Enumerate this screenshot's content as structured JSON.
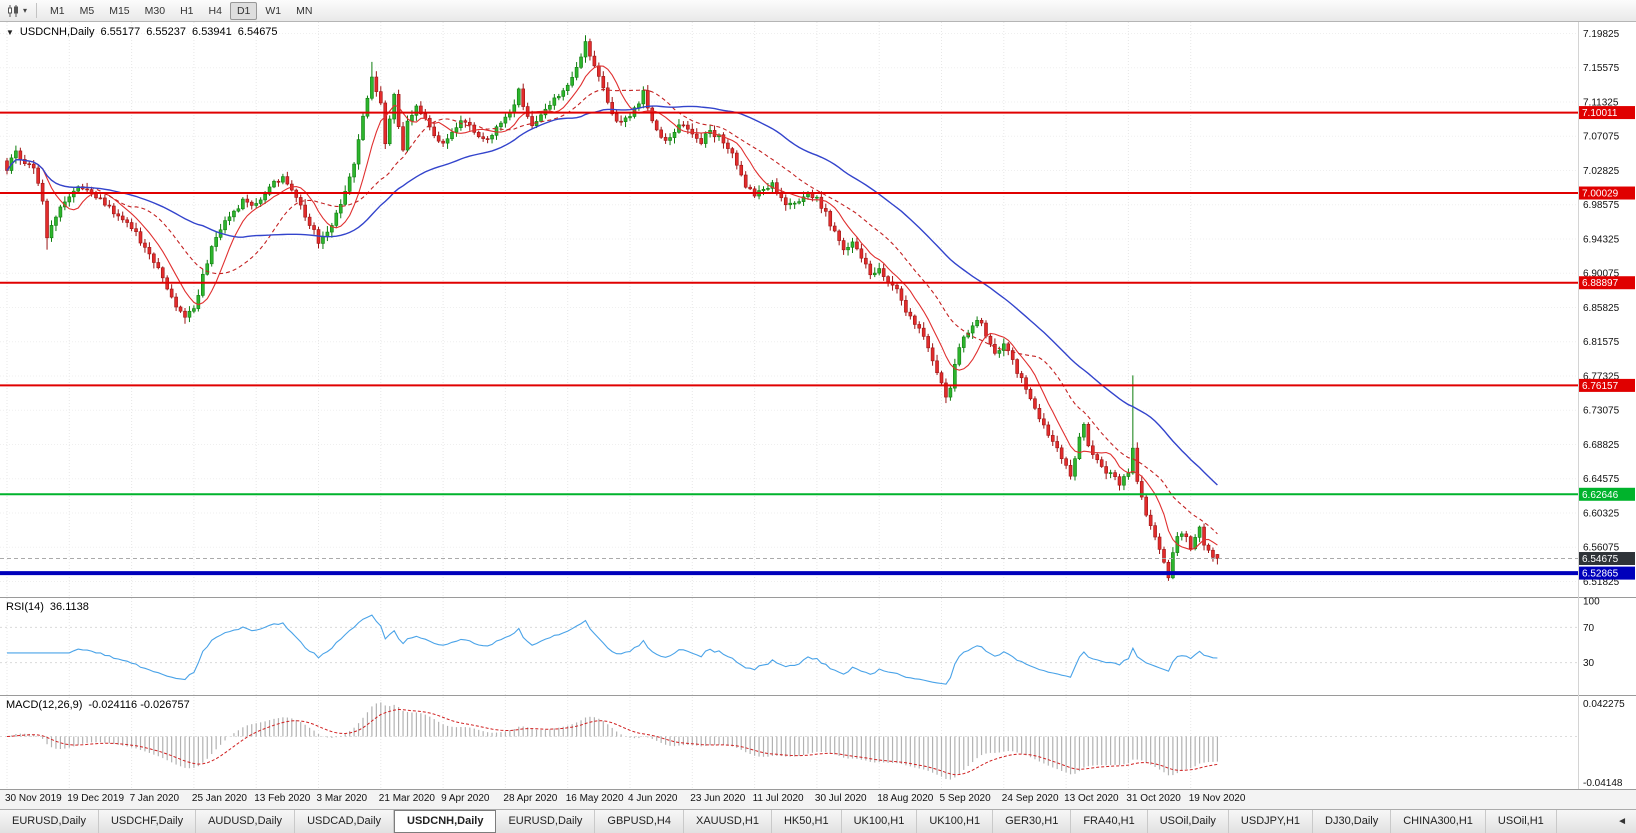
{
  "toolbar": {
    "timeframes": [
      "M1",
      "M5",
      "M15",
      "M30",
      "H1",
      "H4",
      "D1",
      "W1",
      "MN"
    ],
    "active_timeframe": "D1",
    "dropdown_glyph": "▾"
  },
  "header": {
    "collapse_glyph": "▼",
    "symbol_label": "USDCNH,Daily",
    "open": "6.55177",
    "high": "6.55237",
    "low": "6.53941",
    "close": "6.54675"
  },
  "rsi_panel": {
    "label": "RSI(14)",
    "value": "36.1138"
  },
  "macd_panel": {
    "label": "MACD(12,26,9)",
    "values": "-0.024116 -0.026757"
  },
  "tabbar": {
    "active_index": 4,
    "scroll_glyph": "◄",
    "tabs": [
      "EURUSD,Daily",
      "USDCHF,Daily",
      "AUDUSD,Daily",
      "USDCAD,Daily",
      "USDCNH,Daily",
      "EURUSD,Daily",
      "GBPUSD,H4",
      "XAUUSD,H1",
      "HK50,H1",
      "UK100,H1",
      "UK100,H1",
      "GER30,H1",
      "FRA40,H1",
      "USOil,Daily",
      "USDJPY,H1",
      "DJ30,Daily",
      "CHINA300,H1",
      "USOil,H1"
    ]
  },
  "chart_data": {
    "type": "candlestick",
    "symbol": "USDCNH",
    "timeframe": "Daily",
    "candle_count": 273,
    "axis_range": {
      "top": 7.2125,
      "bottom": 6.499
    },
    "price_axis_labels": [
      "7.19825",
      "7.15575",
      "7.11325",
      "7.07075",
      "7.02825",
      "6.98575",
      "6.94325",
      "6.90075",
      "6.85825",
      "6.81575",
      "6.77325",
      "6.73075",
      "6.68825",
      "6.64575",
      "6.60325",
      "6.56075",
      "6.51825"
    ],
    "x_tick_indices": [
      0,
      14,
      28,
      42,
      56,
      70,
      84,
      98,
      112,
      126,
      140,
      154,
      168,
      182,
      196,
      210,
      224,
      238,
      252,
      266
    ],
    "x_tick_labels": [
      "30 Nov 2019",
      "19 Dec 2019",
      "7 Jan 2020",
      "25 Jan 2020",
      "13 Feb 2020",
      "3 Mar 2020",
      "21 Mar 2020",
      "9 Apr 2020",
      "28 Apr 2020",
      "16 May 2020",
      "4 Jun 2020",
      "23 Jun 2020",
      "11 Jul 2020",
      "30 Jul 2020",
      "18 Aug 2020",
      "5 Sep 2020",
      "24 Sep 2020",
      "13 Oct 2020",
      "31 Oct 2020",
      "19 Nov 2020"
    ],
    "close_anchors": [
      [
        0,
        7.03
      ],
      [
        2,
        7.052
      ],
      [
        4,
        7.038
      ],
      [
        6,
        7.034
      ],
      [
        8,
        6.992
      ],
      [
        9,
        6.948
      ],
      [
        11,
        6.972
      ],
      [
        14,
        6.998
      ],
      [
        17,
        7.008
      ],
      [
        20,
        6.996
      ],
      [
        24,
        6.976
      ],
      [
        28,
        6.96
      ],
      [
        31,
        6.932
      ],
      [
        34,
        6.906
      ],
      [
        36,
        6.882
      ],
      [
        38,
        6.86
      ],
      [
        40,
        6.846
      ],
      [
        42,
        6.856
      ],
      [
        44,
        6.898
      ],
      [
        46,
        6.93
      ],
      [
        48,
        6.954
      ],
      [
        50,
        6.974
      ],
      [
        53,
        6.99
      ],
      [
        56,
        6.984
      ],
      [
        58,
        7.0
      ],
      [
        60,
        7.014
      ],
      [
        62,
        7.02
      ],
      [
        64,
        7.004
      ],
      [
        66,
        6.986
      ],
      [
        68,
        6.962
      ],
      [
        70,
        6.94
      ],
      [
        72,
        6.95
      ],
      [
        74,
        6.974
      ],
      [
        76,
        7.0
      ],
      [
        78,
        7.04
      ],
      [
        80,
        7.092
      ],
      [
        82,
        7.142
      ],
      [
        84,
        7.11
      ],
      [
        85,
        7.06
      ],
      [
        86,
        7.096
      ],
      [
        87,
        7.126
      ],
      [
        88,
        7.082
      ],
      [
        89,
        7.052
      ],
      [
        90,
        7.086
      ],
      [
        92,
        7.11
      ],
      [
        94,
        7.094
      ],
      [
        96,
        7.07
      ],
      [
        98,
        7.06
      ],
      [
        100,
        7.076
      ],
      [
        102,
        7.09
      ],
      [
        104,
        7.084
      ],
      [
        106,
        7.07
      ],
      [
        108,
        7.064
      ],
      [
        110,
        7.08
      ],
      [
        112,
        7.094
      ],
      [
        114,
        7.11
      ],
      [
        115,
        7.128
      ],
      [
        116,
        7.104
      ],
      [
        118,
        7.086
      ],
      [
        120,
        7.096
      ],
      [
        122,
        7.11
      ],
      [
        124,
        7.124
      ],
      [
        126,
        7.136
      ],
      [
        128,
        7.156
      ],
      [
        130,
        7.186
      ],
      [
        132,
        7.158
      ],
      [
        134,
        7.128
      ],
      [
        136,
        7.1
      ],
      [
        138,
        7.086
      ],
      [
        140,
        7.096
      ],
      [
        142,
        7.112
      ],
      [
        143,
        7.124
      ],
      [
        144,
        7.104
      ],
      [
        146,
        7.08
      ],
      [
        148,
        7.064
      ],
      [
        150,
        7.076
      ],
      [
        152,
        7.086
      ],
      [
        154,
        7.076
      ],
      [
        156,
        7.064
      ],
      [
        158,
        7.076
      ],
      [
        160,
        7.07
      ],
      [
        162,
        7.058
      ],
      [
        164,
        7.038
      ],
      [
        166,
        7.01
      ],
      [
        168,
        6.996
      ],
      [
        170,
        7.004
      ],
      [
        172,
        7.01
      ],
      [
        174,
        6.994
      ],
      [
        176,
        6.984
      ],
      [
        178,
        6.99
      ],
      [
        180,
        7.0
      ],
      [
        182,
        6.994
      ],
      [
        184,
        6.974
      ],
      [
        186,
        6.95
      ],
      [
        188,
        6.93
      ],
      [
        190,
        6.936
      ],
      [
        192,
        6.92
      ],
      [
        194,
        6.9
      ],
      [
        196,
        6.906
      ],
      [
        198,
        6.89
      ],
      [
        200,
        6.88
      ],
      [
        202,
        6.856
      ],
      [
        204,
        6.84
      ],
      [
        206,
        6.82
      ],
      [
        208,
        6.79
      ],
      [
        210,
        6.768
      ],
      [
        211,
        6.746
      ],
      [
        212,
        6.762
      ],
      [
        213,
        6.786
      ],
      [
        214,
        6.81
      ],
      [
        216,
        6.83
      ],
      [
        218,
        6.846
      ],
      [
        220,
        6.826
      ],
      [
        222,
        6.8
      ],
      [
        224,
        6.816
      ],
      [
        226,
        6.79
      ],
      [
        228,
        6.768
      ],
      [
        230,
        6.744
      ],
      [
        232,
        6.72
      ],
      [
        234,
        6.7
      ],
      [
        236,
        6.684
      ],
      [
        238,
        6.664
      ],
      [
        239,
        6.65
      ],
      [
        240,
        6.672
      ],
      [
        241,
        6.696
      ],
      [
        242,
        6.71
      ],
      [
        243,
        6.69
      ],
      [
        244,
        6.676
      ],
      [
        246,
        6.66
      ],
      [
        248,
        6.65
      ],
      [
        250,
        6.64
      ],
      [
        252,
        6.654
      ],
      [
        253,
        6.68
      ],
      [
        254,
        6.64
      ],
      [
        256,
        6.6
      ],
      [
        258,
        6.57
      ],
      [
        260,
        6.546
      ],
      [
        261,
        6.526
      ],
      [
        262,
        6.556
      ],
      [
        263,
        6.576
      ],
      [
        264,
        6.58
      ],
      [
        265,
        6.57
      ],
      [
        266,
        6.56
      ],
      [
        267,
        6.576
      ],
      [
        268,
        6.582
      ],
      [
        269,
        6.566
      ],
      [
        270,
        6.556
      ],
      [
        271,
        6.549
      ],
      [
        272,
        6.547
      ]
    ],
    "wick_overrides": {
      "9": {
        "low": 6.93
      },
      "40": {
        "low": 6.838
      },
      "82": {
        "high": 7.163
      },
      "130": {
        "high": 7.196
      },
      "253": {
        "high": 6.774
      },
      "261": {
        "low": 6.519
      }
    },
    "last_candle": {
      "open": 6.55177,
      "high": 6.55237,
      "low": 6.53941,
      "close": 6.54675
    },
    "colors": {
      "up_fill": "#2db52d",
      "up_stroke": "#0e7d0e",
      "down_fill": "#e22c2c",
      "down_stroke": "#9c1414",
      "grid": "#e7e7e7"
    },
    "moving_averages": [
      {
        "name": "fast-ma",
        "period": 8,
        "color": "#e03030",
        "style": "solid"
      },
      {
        "name": "mid-ma",
        "period": 20,
        "color": "#c42222",
        "style": "dashed"
      },
      {
        "name": "slow-ma",
        "period": 45,
        "color": "#3344cc",
        "style": "solid"
      }
    ],
    "hlines": [
      {
        "price": 7.10011,
        "label": "7.10011",
        "color": "#e00000",
        "width": 2
      },
      {
        "price": 7.00029,
        "label": "7.00029",
        "color": "#e00000",
        "width": 2
      },
      {
        "price": 6.88897,
        "label": "6.88897",
        "color": "#e00000",
        "width": 2
      },
      {
        "price": 6.76157,
        "label": "6.76157",
        "color": "#e00000",
        "width": 2
      },
      {
        "price": 6.62646,
        "label": "6.62646",
        "color": "#00b32c",
        "width": 2
      },
      {
        "price": 6.52865,
        "label": "6.52865",
        "color": "#0000bb",
        "width": 4
      }
    ],
    "current_price": {
      "value": 6.54675,
      "label": "6.54675",
      "tag_color": "#2f3338"
    },
    "rsi": {
      "period": 14,
      "levels": [
        70,
        30
      ],
      "axis_labels": [
        "100",
        "70",
        "30"
      ],
      "color": "#4aa3e8"
    },
    "macd": {
      "fast": 12,
      "slow": 26,
      "signal": 9,
      "hist_color": "#b2b2b2",
      "signal_color": "#d02020",
      "axis_top_label": "0.042275",
      "axis_bottom_label": "-0.04148"
    }
  }
}
